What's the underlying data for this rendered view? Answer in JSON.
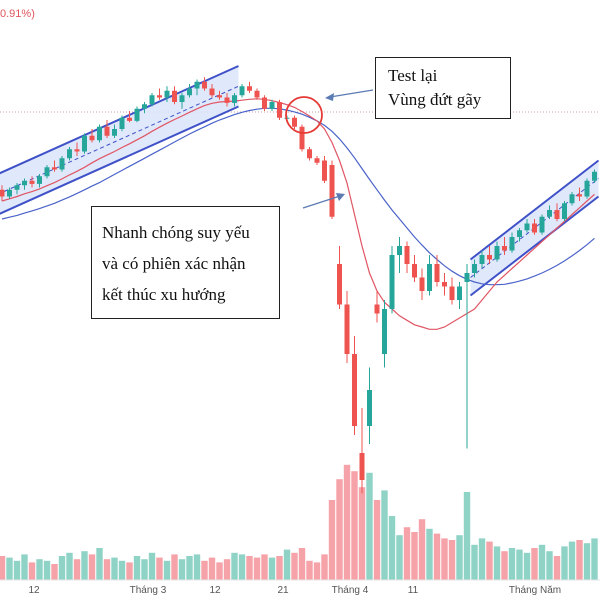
{
  "header": {
    "change_text": "0.91%)"
  },
  "annotations": {
    "test": {
      "line1": "Test lại",
      "line2": "Vùng đứt gãy"
    },
    "weak": {
      "line1": "Nhanh chóng suy yếu",
      "line2": "và có phiên xác nhận",
      "line3": "kết thúc xu hướng"
    }
  },
  "colors": {
    "up": "#26a69a",
    "down": "#ef5350",
    "vol_up": "#8fd3c6",
    "vol_down": "#f5a3a8",
    "channel": "#3f51c8",
    "channel_fill": "#dbe4fb",
    "ma_red": "#e05563",
    "ma_blue": "#4a63c9",
    "circle": "#e53935"
  },
  "chart_data": {
    "type": "candlestick",
    "x_tick_labels": [
      "12",
      "Tháng 3",
      "12",
      "21",
      "Tháng 4",
      "11",
      "Tháng Năm"
    ],
    "price_range": [
      0,
      100
    ],
    "volume_range": [
      0,
      100
    ],
    "candles": [
      {
        "o": 24.5,
        "h": 25.5,
        "l": 22,
        "c": 23,
        "v": 15
      },
      {
        "o": 23,
        "h": 25,
        "l": 22.5,
        "c": 24.5,
        "v": 14
      },
      {
        "o": 24.5,
        "h": 26,
        "l": 23.5,
        "c": 25.5,
        "v": 12
      },
      {
        "o": 25.5,
        "h": 27,
        "l": 24.5,
        "c": 26.5,
        "v": 16
      },
      {
        "o": 26.5,
        "h": 27.5,
        "l": 25,
        "c": 25.8,
        "v": 11
      },
      {
        "o": 25.8,
        "h": 28,
        "l": 25,
        "c": 27.5,
        "v": 13
      },
      {
        "o": 27.5,
        "h": 30,
        "l": 27,
        "c": 29.5,
        "v": 12
      },
      {
        "o": 29.5,
        "h": 31,
        "l": 28.5,
        "c": 29,
        "v": 10
      },
      {
        "o": 29,
        "h": 32,
        "l": 28.5,
        "c": 31.5,
        "v": 15
      },
      {
        "o": 31.5,
        "h": 34,
        "l": 31,
        "c": 33.5,
        "v": 17
      },
      {
        "o": 33.5,
        "h": 35,
        "l": 32,
        "c": 33,
        "v": 13
      },
      {
        "o": 33,
        "h": 37,
        "l": 32.5,
        "c": 36.5,
        "v": 18
      },
      {
        "o": 36.5,
        "h": 38,
        "l": 35,
        "c": 35.5,
        "v": 16
      },
      {
        "o": 35.5,
        "h": 39,
        "l": 35,
        "c": 38.5,
        "v": 20
      },
      {
        "o": 38.5,
        "h": 40,
        "l": 36,
        "c": 36.5,
        "v": 13
      },
      {
        "o": 36.5,
        "h": 39,
        "l": 36,
        "c": 38,
        "v": 14
      },
      {
        "o": 38,
        "h": 41,
        "l": 37.5,
        "c": 40.5,
        "v": 12
      },
      {
        "o": 40.5,
        "h": 42,
        "l": 39.5,
        "c": 39.8,
        "v": 11
      },
      {
        "o": 39.8,
        "h": 43,
        "l": 39.5,
        "c": 42.5,
        "v": 15
      },
      {
        "o": 42.5,
        "h": 44,
        "l": 41.5,
        "c": 43.5,
        "v": 13
      },
      {
        "o": 43.5,
        "h": 46,
        "l": 43,
        "c": 45.5,
        "v": 17
      },
      {
        "o": 45.5,
        "h": 47,
        "l": 44.5,
        "c": 45,
        "v": 14
      },
      {
        "o": 45,
        "h": 47.5,
        "l": 44,
        "c": 46.5,
        "v": 12
      },
      {
        "o": 46.5,
        "h": 47.5,
        "l": 43.5,
        "c": 44,
        "v": 16
      },
      {
        "o": 44,
        "h": 46,
        "l": 42.5,
        "c": 45.5,
        "v": 13
      },
      {
        "o": 45.5,
        "h": 48,
        "l": 45,
        "c": 47,
        "v": 15
      },
      {
        "o": 47,
        "h": 49,
        "l": 45.5,
        "c": 48.5,
        "v": 16
      },
      {
        "o": 48.5,
        "h": 49.5,
        "l": 46.5,
        "c": 47,
        "v": 12
      },
      {
        "o": 47,
        "h": 48,
        "l": 45,
        "c": 45.5,
        "v": 14
      },
      {
        "o": 45.5,
        "h": 46.5,
        "l": 44.5,
        "c": 45,
        "v": 11
      },
      {
        "o": 45,
        "h": 46,
        "l": 43,
        "c": 43.8,
        "v": 13
      },
      {
        "o": 43.8,
        "h": 46,
        "l": 43,
        "c": 45.5,
        "v": 17
      },
      {
        "o": 45.5,
        "h": 48,
        "l": 45,
        "c": 47.5,
        "v": 16
      },
      {
        "o": 47.5,
        "h": 48.5,
        "l": 46,
        "c": 46.5,
        "v": 15
      },
      {
        "o": 46.5,
        "h": 47,
        "l": 44.5,
        "c": 45,
        "v": 14
      },
      {
        "o": 45,
        "h": 45.5,
        "l": 42,
        "c": 42.5,
        "v": 16
      },
      {
        "o": 42.5,
        "h": 44.5,
        "l": 42,
        "c": 44,
        "v": 14
      },
      {
        "o": 44,
        "h": 44.5,
        "l": 40,
        "c": 40.5,
        "v": 15
      },
      {
        "o": 40.5,
        "h": 41,
        "l": 40,
        "c": 40.5,
        "v": 19
      },
      {
        "o": 40.5,
        "h": 41,
        "l": 38,
        "c": 38.5,
        "v": 17
      },
      {
        "o": 38.5,
        "h": 39,
        "l": 33,
        "c": 33.5,
        "v": 20
      },
      {
        "o": 33.5,
        "h": 34,
        "l": 31,
        "c": 31.5,
        "v": 12
      },
      {
        "o": 31.5,
        "h": 32,
        "l": 30,
        "c": 30.5,
        "v": 11
      },
      {
        "o": 31,
        "h": 32,
        "l": 26,
        "c": 26.5,
        "v": 16
      },
      {
        "o": 30,
        "h": 31,
        "l": 18,
        "c": 18.5,
        "v": 50
      },
      {
        "o": 8,
        "h": 12,
        "l": -2,
        "c": -1,
        "v": 63
      },
      {
        "o": -1,
        "h": 2,
        "l": -14,
        "c": -12,
        "v": 72
      },
      {
        "o": -12,
        "h": -8,
        "l": -30,
        "c": -28,
        "v": 68
      },
      {
        "o": -34,
        "h": -24,
        "l": -43,
        "c": -40,
        "v": 58
      },
      {
        "o": -28,
        "h": -15,
        "l": -32,
        "c": -20,
        "v": 67
      },
      {
        "o": -1,
        "h": 2,
        "l": -5,
        "c": -3,
        "v": 50
      },
      {
        "o": -12,
        "h": 0,
        "l": -15,
        "c": -2,
        "v": 56
      },
      {
        "o": -2,
        "h": 12,
        "l": -3,
        "c": 10,
        "v": 40
      },
      {
        "o": 10,
        "h": 14,
        "l": 6,
        "c": 12,
        "v": 28
      },
      {
        "o": 12,
        "h": 13,
        "l": 6,
        "c": 8,
        "v": 33
      },
      {
        "o": 8,
        "h": 10,
        "l": 4,
        "c": 5,
        "v": 30
      },
      {
        "o": 5,
        "h": 7,
        "l": 0,
        "c": 2,
        "v": 38
      },
      {
        "o": 2,
        "h": 10,
        "l": 1,
        "c": 8,
        "v": 32
      },
      {
        "o": 8,
        "h": 10,
        "l": 3,
        "c": 4,
        "v": 29
      },
      {
        "o": 4,
        "h": 6,
        "l": 1,
        "c": 3,
        "v": 26
      },
      {
        "o": 3,
        "h": 5,
        "l": -1,
        "c": 0,
        "v": 25
      },
      {
        "o": 0,
        "h": 4,
        "l": -2,
        "c": 3,
        "v": 28
      },
      {
        "o": 4,
        "h": 8,
        "l": -33,
        "c": 6,
        "v": 55
      },
      {
        "o": 6,
        "h": 9,
        "l": 5,
        "c": 8,
        "v": 22
      },
      {
        "o": 8,
        "h": 11,
        "l": 7,
        "c": 10,
        "v": 26
      },
      {
        "o": 10,
        "h": 12,
        "l": 8,
        "c": 9,
        "v": 24
      },
      {
        "o": 9,
        "h": 13,
        "l": 8.5,
        "c": 12,
        "v": 21
      },
      {
        "o": 12,
        "h": 14,
        "l": 10,
        "c": 11,
        "v": 18
      },
      {
        "o": 11,
        "h": 15,
        "l": 10.5,
        "c": 14,
        "v": 20
      },
      {
        "o": 14,
        "h": 16,
        "l": 13,
        "c": 15.5,
        "v": 19
      },
      {
        "o": 15.5,
        "h": 18,
        "l": 15,
        "c": 17,
        "v": 17
      },
      {
        "o": 17,
        "h": 18,
        "l": 14.5,
        "c": 15,
        "v": 20
      },
      {
        "o": 15,
        "h": 19,
        "l": 14.5,
        "c": 18.5,
        "v": 22
      },
      {
        "o": 18.5,
        "h": 21,
        "l": 18,
        "c": 20,
        "v": 18
      },
      {
        "o": 20,
        "h": 21.5,
        "l": 17.5,
        "c": 18,
        "v": 15
      },
      {
        "o": 18,
        "h": 22,
        "l": 17.5,
        "c": 21.5,
        "v": 21
      },
      {
        "o": 21.5,
        "h": 24,
        "l": 21,
        "c": 23.5,
        "v": 24
      },
      {
        "o": 23.5,
        "h": 25,
        "l": 22,
        "c": 23,
        "v": 25
      },
      {
        "o": 23,
        "h": 27,
        "l": 22.5,
        "c": 26.5,
        "v": 23
      },
      {
        "o": 26.5,
        "h": 29,
        "l": 26,
        "c": 28.5,
        "v": 26
      }
    ],
    "ma_red": [
      22,
      22.5,
      23,
      23.6,
      24.1,
      24.7,
      25.4,
      26.1,
      26.9,
      27.8,
      28.6,
      29.5,
      30.5,
      31.4,
      32.2,
      33,
      33.9,
      34.7,
      35.6,
      36.5,
      37.5,
      38.4,
      39.3,
      40.1,
      40.9,
      41.7,
      42.5,
      43.2,
      43.7,
      44,
      44.1,
      44.2,
      44.4,
      44.6,
      44.7,
      44.6,
      44.3,
      43.9,
      43.4,
      42.8,
      41.9,
      40.9,
      39.8,
      38,
      35,
      31,
      26,
      19,
      12,
      6,
      2,
      -0.5,
      -2,
      -3.5,
      -4.5,
      -5.5,
      -6,
      -6.5,
      -6.5,
      -6,
      -5,
      -4,
      -3,
      -2,
      0,
      2,
      4,
      5.5,
      7,
      8.5,
      10,
      11.5,
      13,
      14.5,
      16,
      17.5,
      19,
      20.5,
      22,
      23.5
    ],
    "ma_blue": [
      18,
      18.4,
      18.8,
      19.3,
      19.8,
      20.3,
      20.9,
      21.5,
      22.2,
      22.9,
      23.7,
      24.5,
      25.3,
      26.1,
      27,
      27.9,
      28.8,
      29.7,
      30.6,
      31.5,
      32.4,
      33.3,
      34.2,
      35.1,
      36,
      36.9,
      37.7,
      38.5,
      39.3,
      40,
      40.6,
      41.2,
      41.7,
      42.1,
      42.4,
      42.6,
      42.6,
      42.5,
      42.2,
      41.8,
      41.3,
      40.6,
      39.8,
      38.8,
      37.5,
      35.8,
      33.8,
      31.6,
      29.2,
      26.8,
      24.5,
      22.2,
      20,
      18,
      16,
      14,
      12.2,
      10.5,
      9,
      7.6,
      6.4,
      5.4,
      4.6,
      4,
      3.6,
      3.4,
      3.4,
      3.5,
      3.8,
      4.2,
      4.7,
      5.3,
      6,
      6.8,
      7.7,
      8.7,
      9.8,
      11,
      12.3,
      13.7
    ],
    "channels": [
      {
        "from_index": 0,
        "to_index": 31,
        "lower_start": 19,
        "lower_end": 43,
        "upper_start": 28,
        "upper_end": 52
      },
      {
        "from_index": 63,
        "to_index": 79,
        "lower_start": 1,
        "lower_end": 23,
        "upper_start": 9,
        "upper_end": 31
      }
    ]
  }
}
